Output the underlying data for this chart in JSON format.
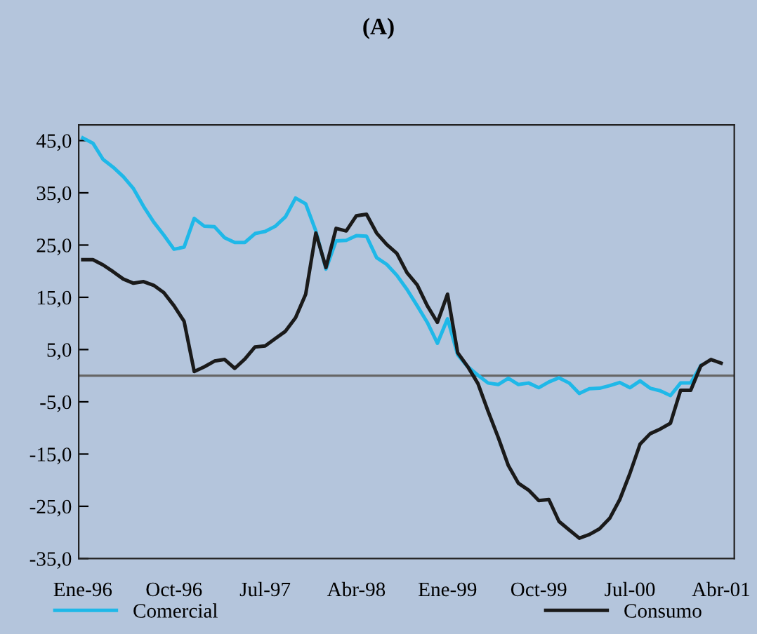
{
  "chart_data": {
    "type": "line",
    "title": "(A)",
    "categories": [
      "Ene-96",
      null,
      null,
      null,
      null,
      null,
      null,
      null,
      null,
      "Oct-96",
      null,
      null,
      null,
      null,
      null,
      null,
      null,
      null,
      "Jul-97",
      null,
      null,
      null,
      null,
      null,
      null,
      null,
      null,
      "Abr-98",
      null,
      null,
      null,
      null,
      null,
      null,
      null,
      null,
      "Ene-99",
      null,
      null,
      null,
      null,
      null,
      null,
      null,
      null,
      "Oct-99",
      null,
      null,
      null,
      null,
      null,
      null,
      null,
      null,
      "Jul-00",
      null,
      null,
      null,
      null,
      null,
      null,
      null,
      null,
      "Abr-01"
    ],
    "series": [
      {
        "name": "Comercial",
        "color": "#1fb8e8",
        "values": [
          45.5,
          44.5,
          41.4,
          39.9,
          38.1,
          35.8,
          32.4,
          29.4,
          26.9,
          24.2,
          24.6,
          30.1,
          28.6,
          28.5,
          26.4,
          25.5,
          25.5,
          27.2,
          27.6,
          28.6,
          30.4,
          34.0,
          32.9,
          27.7,
          20.4,
          25.8,
          25.9,
          26.8,
          26.7,
          22.6,
          21.3,
          19.2,
          16.5,
          13.4,
          10.2,
          6.2,
          10.9,
          4.0,
          1.7,
          0.1,
          -1.4,
          -1.7,
          -0.5,
          -1.7,
          -1.4,
          -2.3,
          -1.2,
          -0.4,
          -1.4,
          -3.4,
          -2.5,
          -2.4,
          -1.9,
          -1.3,
          -2.3,
          -1.0,
          -2.4,
          -2.9,
          -3.8,
          -1.4,
          -1.4,
          1.9,
          null,
          null
        ]
      },
      {
        "name": "Consumo",
        "color": "#1a1a1a",
        "values": [
          22.2,
          22.2,
          21.2,
          19.9,
          18.5,
          17.7,
          18.0,
          17.3,
          15.9,
          13.4,
          10.4,
          0.8,
          1.7,
          2.8,
          3.1,
          1.4,
          3.2,
          5.5,
          5.7,
          7.1,
          8.5,
          11.1,
          15.6,
          27.3,
          20.7,
          28.2,
          27.7,
          30.6,
          30.9,
          27.3,
          25.1,
          23.4,
          19.7,
          17.4,
          13.4,
          10.2,
          15.6,
          4.4,
          1.7,
          -1.5,
          -6.8,
          -11.8,
          -17.2,
          -20.6,
          -21.9,
          -23.9,
          -23.7,
          -27.9,
          -29.5,
          -31.1,
          -30.4,
          -29.3,
          -27.3,
          -23.7,
          -18.7,
          -13.1,
          -11.1,
          -10.2,
          -9.1,
          -2.8,
          -2.8,
          1.9,
          3.1,
          2.4
        ]
      }
    ],
    "ylim": [
      -35,
      48
    ],
    "yticks": [
      {
        "value": 45,
        "label": "45,0"
      },
      {
        "value": 35,
        "label": "35,0"
      },
      {
        "value": 25,
        "label": "25,0"
      },
      {
        "value": 15,
        "label": "15,0"
      },
      {
        "value": 5,
        "label": "5,0"
      },
      {
        "value": -5,
        "label": "-5,0"
      },
      {
        "value": -15,
        "label": "-15,0"
      },
      {
        "value": -25,
        "label": "-25,0"
      },
      {
        "value": -35,
        "label": "-35,0"
      }
    ],
    "ref_lines": [
      {
        "axis": "y",
        "value": 0,
        "color": "#666666"
      }
    ],
    "grid": false,
    "legend": "bottom",
    "marker": "none",
    "line_style": "solid"
  }
}
